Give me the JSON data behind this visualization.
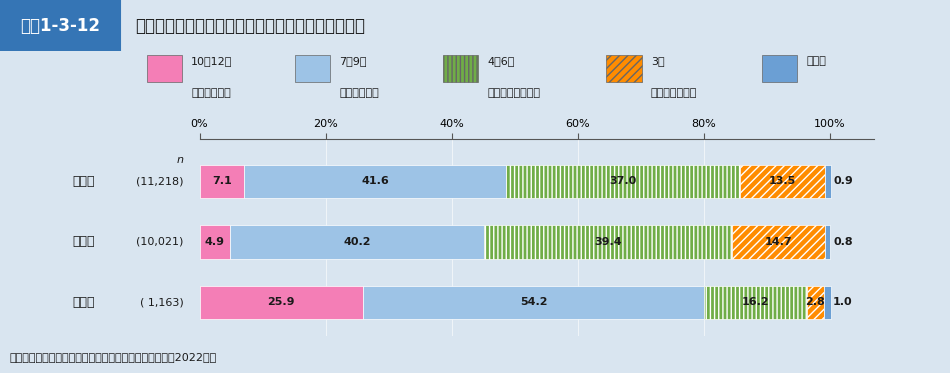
{
  "title_label": "図表1-3-12",
  "title_main": "不安や悩みの相談相手の有無別孤独感（間接質問）",
  "source": "資料：内閣官房「人々のつながりに関する基礎調査」（2022年）",
  "categories": [
    "全　体",
    "い　る",
    "いない"
  ],
  "n_labels": [
    "(11,218)",
    "(10,021)",
    "( 1,163)"
  ],
  "segments": [
    [
      7.1,
      41.6,
      37.0,
      13.5,
      0.9
    ],
    [
      4.9,
      40.2,
      39.4,
      14.7,
      0.8
    ],
    [
      25.9,
      54.2,
      16.2,
      2.8,
      1.0
    ]
  ],
  "segment_labels": [
    [
      "7.1",
      "41.6",
      "37.0",
      "13.5",
      "0.9"
    ],
    [
      "4.9",
      "40.2",
      "39.4",
      "14.7",
      "0.8"
    ],
    [
      "25.9",
      "54.2",
      "16.2",
      "2.8",
      "1.0"
    ]
  ],
  "colors": [
    "#F47EB6",
    "#9DC3E6",
    "#70AD47",
    "#FF8C00",
    "#6B9FD4"
  ],
  "hatch_colors": [
    "#F47EB6",
    "#9DC3E6",
    "#5A8C30",
    "#FF8C00",
    "#4472C4"
  ],
  "hatches": [
    null,
    null,
    "||||",
    "////",
    "==="
  ],
  "legend_items": [
    {
      "label1": "10～12点",
      "label2": "（常にある）",
      "color": "#F47EB6",
      "hatch": null
    },
    {
      "label1": "7～9点",
      "label2": "（時々ある）",
      "color": "#9DC3E6",
      "hatch": null
    },
    {
      "label1": "4～6点",
      "label2": "（ほとんどない）",
      "color": "#70AD47",
      "hatch": "||||"
    },
    {
      "label1": "3点",
      "label2": "（決してない）",
      "color": "#FF8C00",
      "hatch": "////"
    },
    {
      "label1": "無回答",
      "label2": "",
      "color": "#6B9FD4",
      "hatch": "==="
    }
  ],
  "bg_color": "#D9E5F0",
  "header_bg": "#3575B5",
  "bar_height": 0.55,
  "min_label_pct": 2.5
}
